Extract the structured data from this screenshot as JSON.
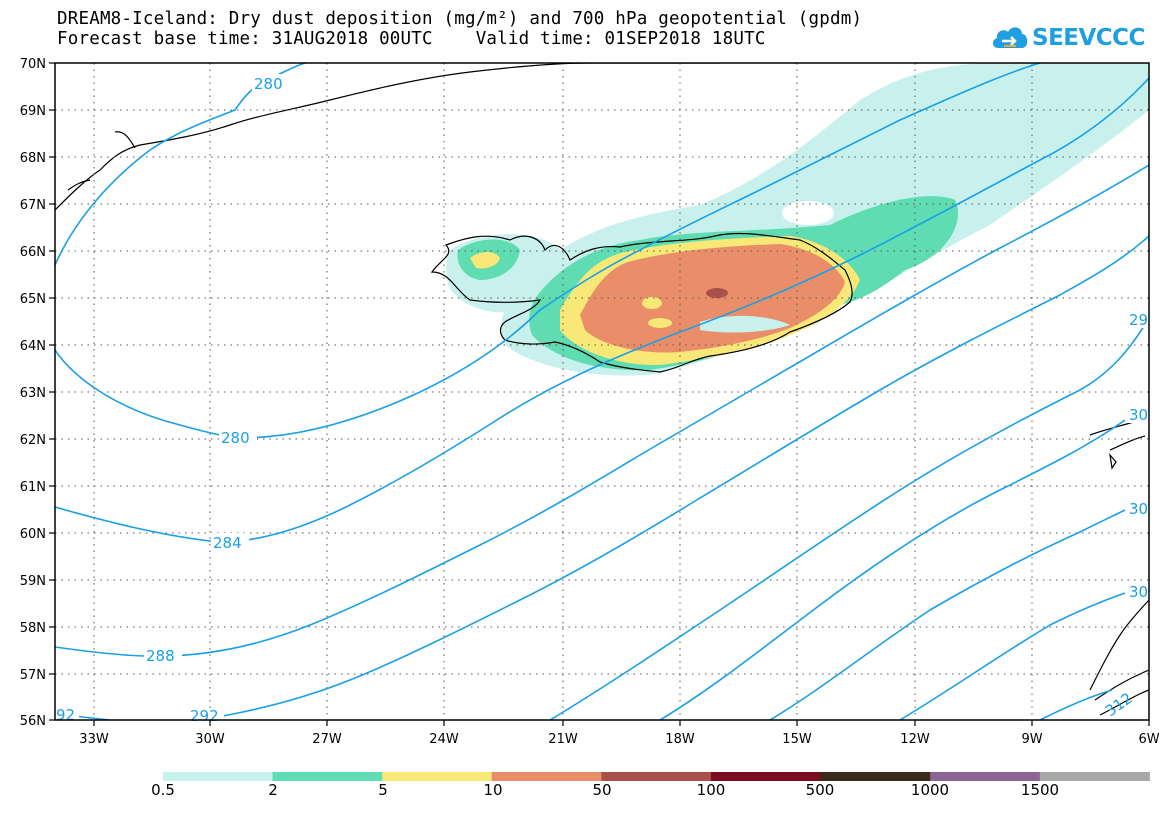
{
  "title": {
    "line1": "DREAM8-Iceland: Dry dust deposition (mg/m²) and 700 hPa geopotential (gpdm)",
    "line2": "Forecast base time: 31AUG2018 00UTC    Valid time: 01SEP2018 18UTC"
  },
  "logo": {
    "text": "SEEVCCC",
    "icon": "cloud-arrow-icon",
    "color": "#1f9fe0"
  },
  "map": {
    "latitude_labels": [
      "70N",
      "69N",
      "68N",
      "67N",
      "66N",
      "65N",
      "64N",
      "63N",
      "62N",
      "61N",
      "60N",
      "59N",
      "58N",
      "57N",
      "56N"
    ],
    "longitude_labels": [
      "33W",
      "30W",
      "27W",
      "24W",
      "21W",
      "18W",
      "15W",
      "12W",
      "9W",
      "6W"
    ],
    "lat_range": [
      56,
      70
    ],
    "lon_range": [
      -34.5,
      -6
    ],
    "gridlines": "dotted",
    "contour_color": "#19a0e6",
    "contour_labels": [
      "280",
      "280",
      "284",
      "288",
      "92",
      "292",
      "29",
      "30",
      "30",
      "30",
      "312"
    ]
  },
  "legend": {
    "labels": [
      "0.5",
      "2",
      "5",
      "10",
      "50",
      "100",
      "500",
      "1000",
      "1500"
    ],
    "colors": [
      "#c8f0ec",
      "#5fdcb2",
      "#f7e878",
      "#ea8e6a",
      "#a8504a",
      "#7c0c22",
      "#3a2a1a",
      "#8c6496",
      "#a8a8a8"
    ]
  }
}
